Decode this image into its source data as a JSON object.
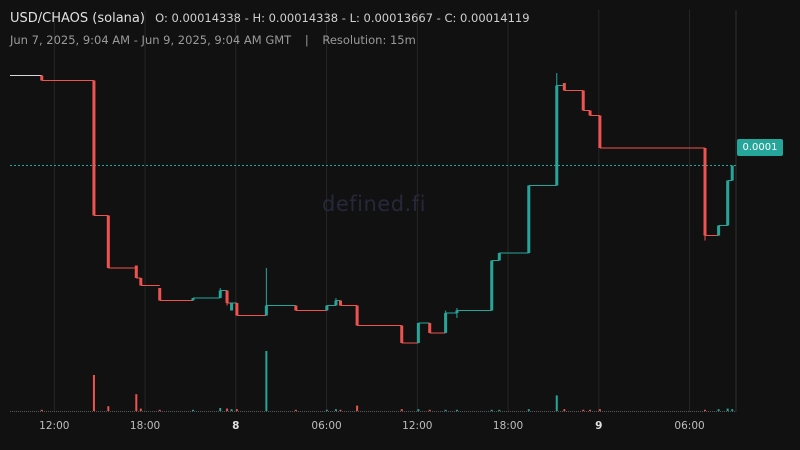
{
  "header": {
    "pair": "USD/CHAOS (solana)",
    "ohlc": "O: 0.00014338 - H: 0.00014338 - L: 0.00013667 - C: 0.00014119",
    "range": "Jun 7, 2025, 9:04 AM - Jun 9, 2025, 9:04 AM GMT",
    "separator": "|",
    "resolution": "Resolution: 15m"
  },
  "watermark": "defined.fi",
  "current_price_label": "0.0001",
  "colors": {
    "up": "#26a69a",
    "down": "#ef5350",
    "background": "#111111",
    "grid": "#262626"
  },
  "chart_data": {
    "type": "candlestick",
    "title": "USD/CHAOS (solana)",
    "x_unit": "hours since Jun 7, 2025 09:04 GMT",
    "xlim": [
      0,
      48
    ],
    "ylim": [
      0.0001345,
      0.0001455
    ],
    "x_ticks": [
      {
        "label": "12:00",
        "x": 2.93,
        "bold": false
      },
      {
        "label": "18:00",
        "x": 8.93,
        "bold": false
      },
      {
        "label": "8",
        "x": 14.93,
        "bold": true
      },
      {
        "label": "06:00",
        "x": 20.93,
        "bold": false
      },
      {
        "label": "12:00",
        "x": 26.93,
        "bold": false
      },
      {
        "label": "18:00",
        "x": 32.93,
        "bold": false
      },
      {
        "label": "9",
        "x": 38.93,
        "bold": true
      },
      {
        "label": "06:00",
        "x": 44.93,
        "bold": false
      }
    ],
    "current_price_line": 0.0001412,
    "candles": [
      {
        "x": 2.1,
        "o": 0.0001448,
        "h": 0.0001448,
        "l": 0.0001446,
        "c": 0.0001446,
        "v": 2
      },
      {
        "x": 5.55,
        "o": 0.0001446,
        "h": 0.0001446,
        "l": 0.0001392,
        "c": 0.0001392,
        "v": 60
      },
      {
        "x": 6.5,
        "o": 0.0001392,
        "h": 0.0001392,
        "l": 0.0001371,
        "c": 0.0001371,
        "v": 8
      },
      {
        "x": 8.35,
        "o": 0.0001372,
        "h": 0.0001372,
        "l": 0.0001367,
        "c": 0.0001367,
        "v": 28
      },
      {
        "x": 8.65,
        "o": 0.0001367,
        "h": 0.0001367,
        "l": 0.0001364,
        "c": 0.0001364,
        "v": 4
      },
      {
        "x": 9.9,
        "o": 0.0001363,
        "h": 0.0001363,
        "l": 0.0001358,
        "c": 0.0001358,
        "v": 2
      },
      {
        "x": 12.1,
        "o": 0.0001358,
        "h": 0.0001359,
        "l": 0.0001358,
        "c": 0.0001359,
        "v": 2
      },
      {
        "x": 13.9,
        "o": 0.0001359,
        "h": 0.0001363,
        "l": 0.0001359,
        "c": 0.0001362,
        "v": 5
      },
      {
        "x": 14.35,
        "o": 0.0001362,
        "h": 0.0001362,
        "l": 0.0001356,
        "c": 0.0001357,
        "v": 4
      },
      {
        "x": 14.65,
        "o": 0.0001354,
        "h": 0.0001357,
        "l": 0.0001354,
        "c": 0.0001357,
        "v": 3
      },
      {
        "x": 15.0,
        "o": 0.0001357,
        "h": 0.0001357,
        "l": 0.0001352,
        "c": 0.0001352,
        "v": 3
      },
      {
        "x": 16.95,
        "o": 0.0001352,
        "h": 0.0001371,
        "l": 0.0001352,
        "c": 0.0001356,
        "v": 100
      },
      {
        "x": 18.9,
        "o": 0.0001356,
        "h": 0.0001356,
        "l": 0.0001354,
        "c": 0.0001354,
        "v": 2
      },
      {
        "x": 20.95,
        "o": 0.0001354,
        "h": 0.0001356,
        "l": 0.0001354,
        "c": 0.0001356,
        "v": 2
      },
      {
        "x": 21.55,
        "o": 0.0001356,
        "h": 0.0001359,
        "l": 0.0001356,
        "c": 0.0001358,
        "v": 3
      },
      {
        "x": 21.85,
        "o": 0.0001358,
        "h": 0.0001358,
        "l": 0.0001356,
        "c": 0.0001356,
        "v": 2
      },
      {
        "x": 22.95,
        "o": 0.0001356,
        "h": 0.0001356,
        "l": 0.0001348,
        "c": 0.0001348,
        "v": 9
      },
      {
        "x": 25.9,
        "o": 0.0001348,
        "h": 0.0001348,
        "l": 0.0001341,
        "c": 0.0001341,
        "v": 3
      },
      {
        "x": 27.0,
        "o": 0.0001341,
        "h": 0.0001349,
        "l": 0.0001341,
        "c": 0.0001349,
        "v": 3
      },
      {
        "x": 27.75,
        "o": 0.0001349,
        "h": 0.0001349,
        "l": 0.0001345,
        "c": 0.0001345,
        "v": 2
      },
      {
        "x": 28.8,
        "o": 0.0001345,
        "h": 0.0001354,
        "l": 0.0001345,
        "c": 0.0001353,
        "v": 2
      },
      {
        "x": 29.55,
        "o": 0.0001353,
        "h": 0.0001355,
        "l": 0.0001351,
        "c": 0.0001354,
        "v": 2
      },
      {
        "x": 31.85,
        "o": 0.0001354,
        "h": 0.0001374,
        "l": 0.0001354,
        "c": 0.0001374,
        "v": 2
      },
      {
        "x": 32.35,
        "o": 0.0001374,
        "h": 0.0001377,
        "l": 0.0001374,
        "c": 0.0001377,
        "v": 2
      },
      {
        "x": 34.3,
        "o": 0.0001377,
        "h": 0.0001404,
        "l": 0.0001377,
        "c": 0.0001404,
        "v": 3
      },
      {
        "x": 36.15,
        "o": 0.0001404,
        "h": 0.0001449,
        "l": 0.0001404,
        "c": 0.0001444,
        "v": 26
      },
      {
        "x": 36.65,
        "o": 0.0001445,
        "h": 0.0001445,
        "l": 0.0001442,
        "c": 0.0001442,
        "v": 3
      },
      {
        "x": 37.9,
        "o": 0.0001442,
        "h": 0.0001442,
        "l": 0.0001434,
        "c": 0.0001434,
        "v": 2
      },
      {
        "x": 38.35,
        "o": 0.0001434,
        "h": 0.0001434,
        "l": 0.0001432,
        "c": 0.0001432,
        "v": 2
      },
      {
        "x": 39.0,
        "o": 0.0001432,
        "h": 0.0001432,
        "l": 0.0001419,
        "c": 0.0001419,
        "v": 3
      },
      {
        "x": 45.95,
        "o": 0.0001419,
        "h": 0.0001419,
        "l": 0.0001382,
        "c": 0.0001384,
        "v": 2
      },
      {
        "x": 46.85,
        "o": 0.0001384,
        "h": 0.0001388,
        "l": 0.0001384,
        "c": 0.0001388,
        "v": 3
      },
      {
        "x": 47.45,
        "o": 0.0001388,
        "h": 0.0001406,
        "l": 0.0001388,
        "c": 0.0001406,
        "v": 4
      },
      {
        "x": 47.75,
        "o": 0.0001406,
        "h": 0.0001412,
        "l": 0.0001406,
        "c": 0.0001412,
        "v": 3
      }
    ]
  }
}
